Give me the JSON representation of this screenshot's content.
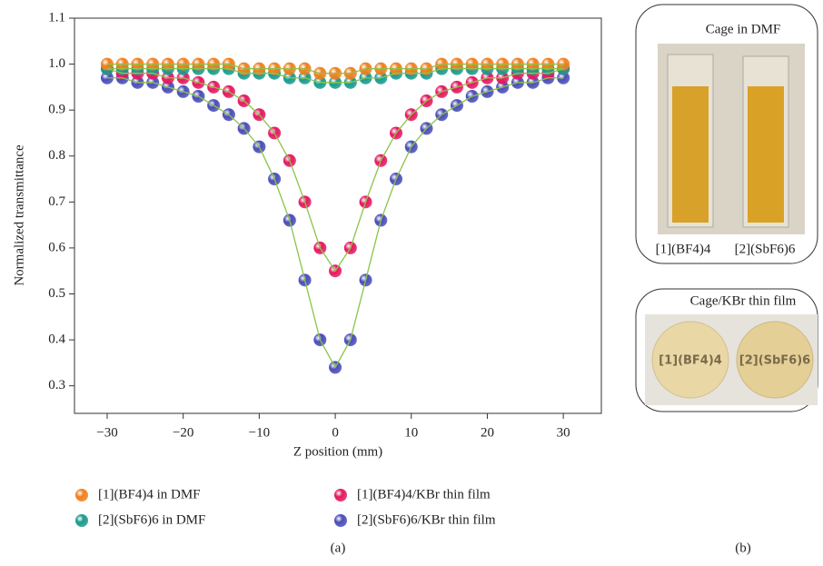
{
  "chart_data": {
    "type": "scatter",
    "x_label": "Z position (mm)",
    "y_label": "Normalized transmittance",
    "xlim": [
      -34.3,
      35
    ],
    "ylim": [
      0.24,
      1.1
    ],
    "xticks": [
      {
        "value": -30,
        "label": "−30"
      },
      {
        "value": -20,
        "label": "−20"
      },
      {
        "value": -10,
        "label": "−10"
      },
      0,
      10,
      20,
      30
    ],
    "yticks": [
      0.3,
      0.4,
      0.5,
      0.6,
      0.7,
      0.8,
      0.9,
      {
        "value": 1,
        "label": "1.0"
      },
      1.1
    ],
    "fit_color": "#8bc34a",
    "x": [
      -30,
      -28,
      -26,
      -24,
      -22,
      -20,
      -18,
      -16,
      -14,
      -12,
      -10,
      -8,
      -6,
      -4,
      -2,
      0,
      2,
      4,
      6,
      8,
      10,
      12,
      14,
      16,
      18,
      20,
      22,
      24,
      26,
      28,
      30
    ],
    "series": [
      {
        "name": "[1](BF4)4 in DMF",
        "color": "#f07f1e",
        "values": [
          1.0,
          1.0,
          1.0,
          1.0,
          1.0,
          1.0,
          1.0,
          1.0,
          1.0,
          0.99,
          0.99,
          0.99,
          0.99,
          0.99,
          0.98,
          0.98,
          0.98,
          0.99,
          0.99,
          0.99,
          0.99,
          0.99,
          1.0,
          1.0,
          1.0,
          1.0,
          1.0,
          1.0,
          1.0,
          1.0,
          1.0
        ]
      },
      {
        "name": "[2](SbF6)6 in DMF",
        "color": "#1a9a8e",
        "values": [
          0.99,
          0.99,
          0.99,
          0.99,
          0.99,
          0.99,
          0.99,
          0.99,
          0.99,
          0.98,
          0.98,
          0.98,
          0.97,
          0.97,
          0.96,
          0.96,
          0.96,
          0.97,
          0.97,
          0.98,
          0.98,
          0.98,
          0.99,
          0.99,
          0.99,
          0.99,
          0.99,
          0.99,
          0.99,
          0.99,
          0.99
        ]
      },
      {
        "name": "[1](BF4)4/KBr thin film",
        "color": "#e5185f",
        "values": [
          0.99,
          0.98,
          0.98,
          0.98,
          0.97,
          0.97,
          0.96,
          0.95,
          0.94,
          0.92,
          0.89,
          0.85,
          0.79,
          0.7,
          0.6,
          0.55,
          0.6,
          0.7,
          0.79,
          0.85,
          0.89,
          0.92,
          0.94,
          0.95,
          0.96,
          0.97,
          0.97,
          0.98,
          0.98,
          0.98,
          0.99
        ]
      },
      {
        "name": "[2](SbF6)6/KBr thin film",
        "color": "#4a4db8",
        "values": [
          0.97,
          0.97,
          0.96,
          0.96,
          0.95,
          0.94,
          0.93,
          0.91,
          0.89,
          0.86,
          0.82,
          0.75,
          0.66,
          0.53,
          0.4,
          0.34,
          0.4,
          0.53,
          0.66,
          0.75,
          0.82,
          0.86,
          0.89,
          0.91,
          0.93,
          0.94,
          0.95,
          0.96,
          0.96,
          0.97,
          0.97
        ]
      }
    ],
    "panel_label": "(a)"
  },
  "panel_b": {
    "label": "(b)",
    "top_title": "Cage in DMF",
    "top_labels": [
      "[1](BF4)4",
      "[2](SbF6)6"
    ],
    "bottom_title": "Cage/KBr thin film",
    "bottom_labels": [
      "[1](BF4)4",
      "[2](SbF6)6"
    ]
  }
}
